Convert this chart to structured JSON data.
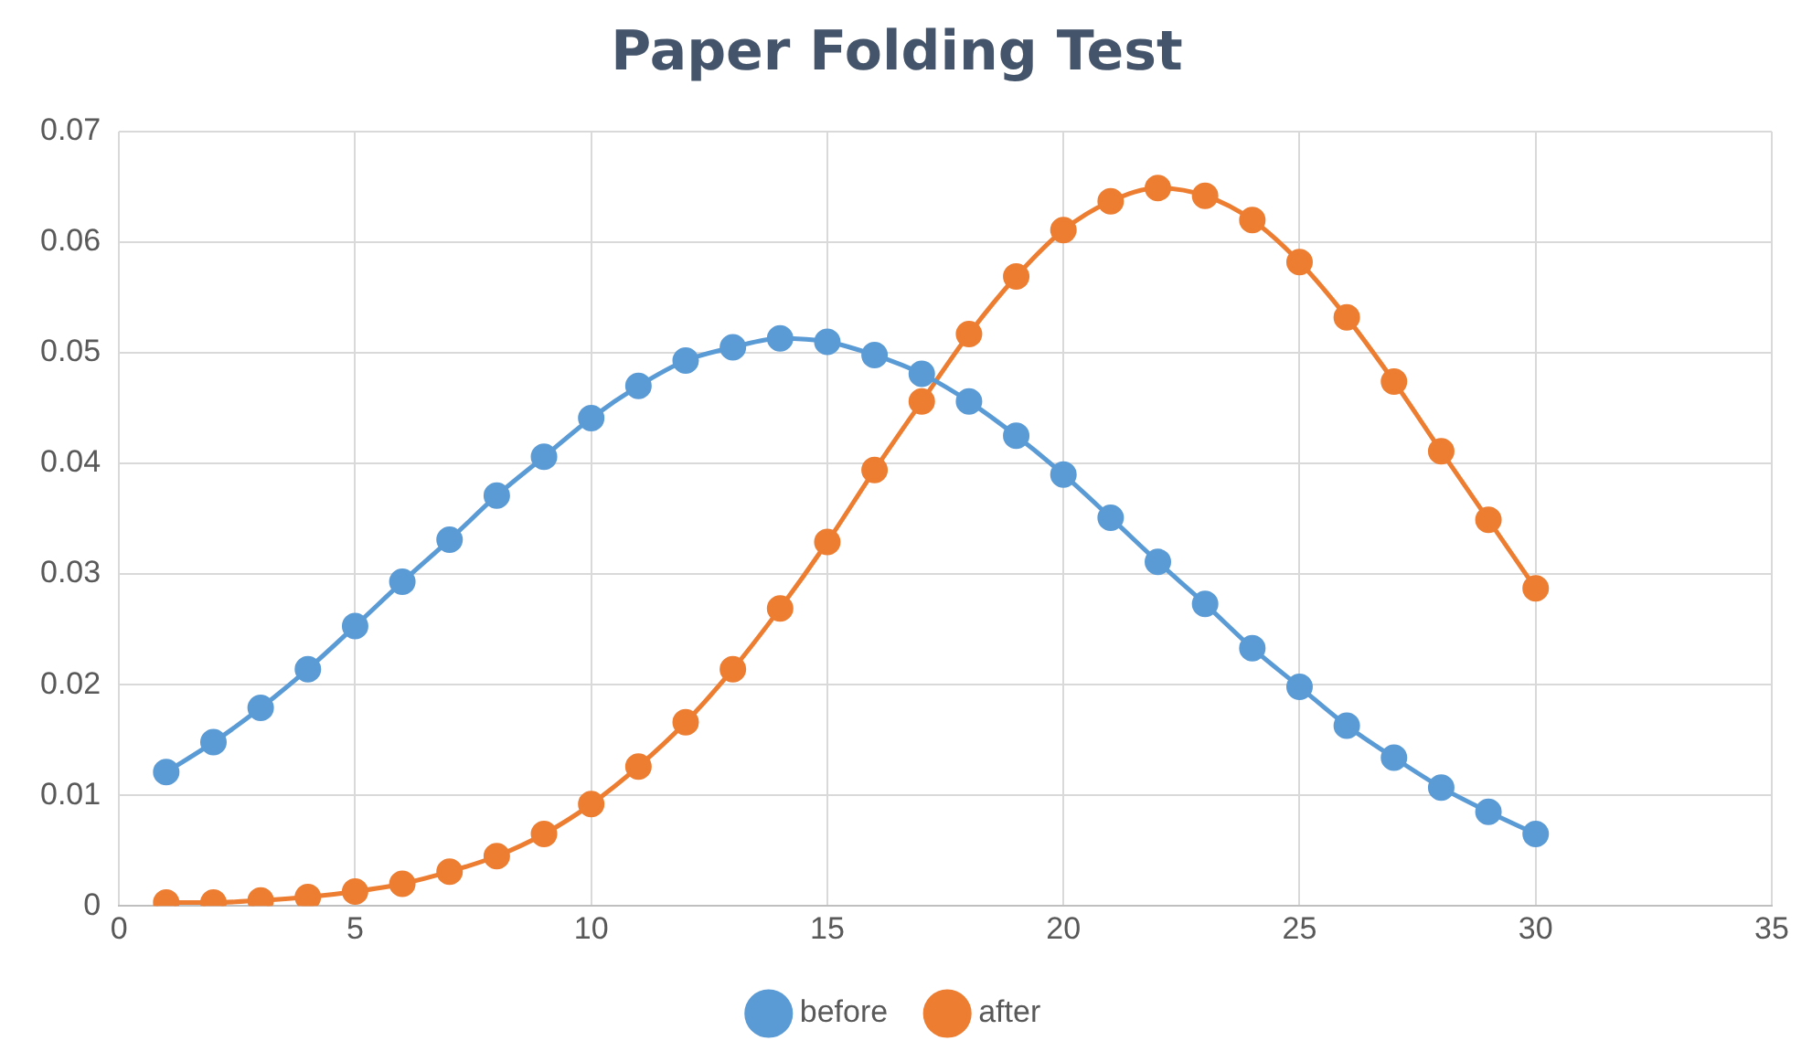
{
  "chart_data": {
    "type": "line",
    "title": "Paper Folding Test",
    "x": [
      1,
      2,
      3,
      4,
      5,
      6,
      7,
      8,
      9,
      10,
      11,
      12,
      13,
      14,
      15,
      16,
      17,
      18,
      19,
      20,
      21,
      22,
      23,
      24,
      25,
      26,
      27,
      28,
      29,
      30
    ],
    "series": [
      {
        "name": "before",
        "color": "#5b9bd5",
        "values": [
          0.0121,
          0.0148,
          0.0179,
          0.0214,
          0.0253,
          0.0293,
          0.0331,
          0.0371,
          0.0406,
          0.0441,
          0.047,
          0.0493,
          0.0505,
          0.0513,
          0.051,
          0.0498,
          0.0481,
          0.0456,
          0.0425,
          0.039,
          0.0351,
          0.0311,
          0.0273,
          0.0233,
          0.0198,
          0.0163,
          0.0134,
          0.0107,
          0.0085,
          0.0065
        ]
      },
      {
        "name": "after",
        "color": "#ed7d31",
        "values": [
          0.0003,
          0.0003,
          0.0005,
          0.0008,
          0.0013,
          0.002,
          0.0031,
          0.0045,
          0.0065,
          0.0092,
          0.0126,
          0.0166,
          0.0214,
          0.0269,
          0.0329,
          0.0394,
          0.0456,
          0.0517,
          0.0569,
          0.0611,
          0.0637,
          0.0649,
          0.0642,
          0.062,
          0.0582,
          0.0532,
          0.0474,
          0.0411,
          0.0349,
          0.0287
        ]
      }
    ],
    "xlim": [
      0,
      35
    ],
    "xticks": [
      0,
      5,
      10,
      15,
      20,
      25,
      30,
      35
    ],
    "ylim": [
      0,
      0.07
    ],
    "yticks": [
      0,
      0.01,
      0.02,
      0.03,
      0.04,
      0.05,
      0.06,
      0.07
    ],
    "grid": true,
    "legend": "bottom",
    "marker": "circle",
    "line_style": "solid"
  }
}
